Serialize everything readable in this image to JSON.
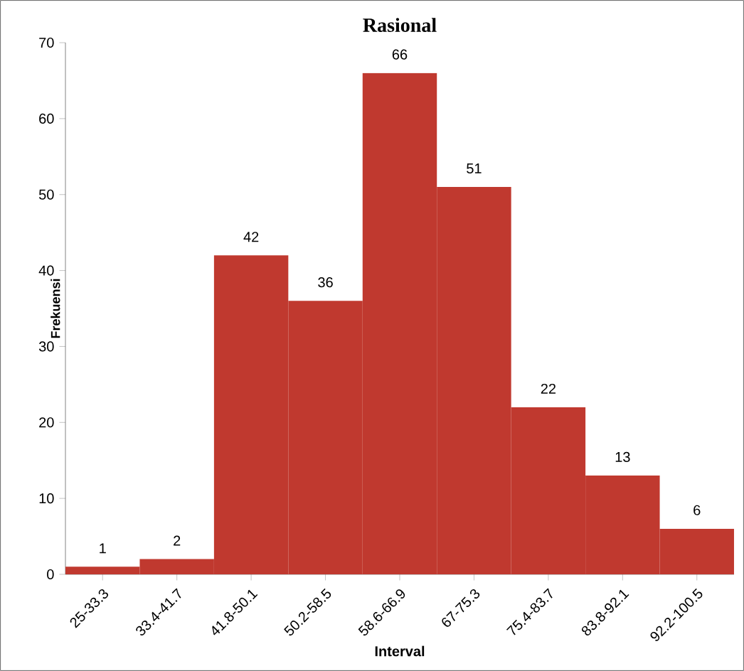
{
  "chart_data": {
    "type": "bar",
    "title": "Rasional",
    "xlabel": "Interval",
    "ylabel": "Frekuensi",
    "categories": [
      "25-33.3",
      "33.4-41.7",
      "41.8-50.1",
      "50.2-58.5",
      "58.6-66.9",
      "67-75.3",
      "75.4-83.7",
      "83.8-92.1",
      "92.2-100.5"
    ],
    "values": [
      1,
      2,
      42,
      36,
      66,
      51,
      22,
      13,
      6
    ],
    "color": "#c0392f",
    "ylim": [
      0,
      70
    ],
    "yticks": [
      0,
      10,
      20,
      30,
      40,
      50,
      60,
      70
    ],
    "data_labels": true,
    "grid": false
  }
}
